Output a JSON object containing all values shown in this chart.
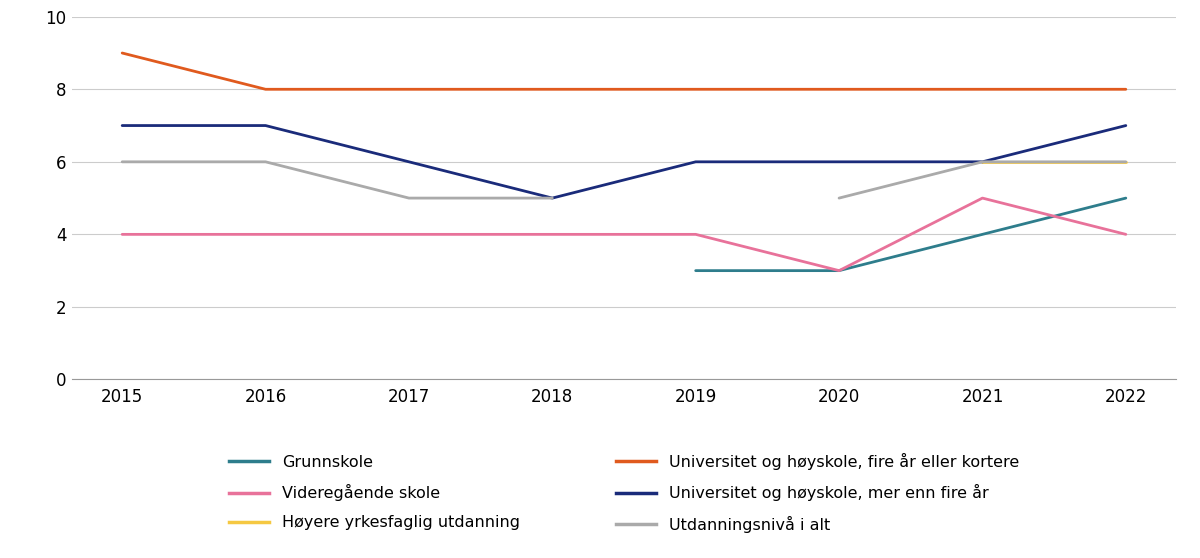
{
  "years": [
    2015,
    2016,
    2017,
    2018,
    2019,
    2020,
    2021,
    2022
  ],
  "series": {
    "Grunnskole": {
      "values": [
        null,
        null,
        null,
        null,
        3.0,
        3.0,
        4.0,
        5.0
      ],
      "color": "#2e7d8c",
      "linestyle": "-"
    },
    "Videregående skole": {
      "values": [
        4.0,
        4.0,
        4.0,
        4.0,
        4.0,
        3.0,
        5.0,
        4.0
      ],
      "color": "#e8729a",
      "linestyle": "-"
    },
    "Høyere yrkesfaglig utdanning": {
      "values": [
        null,
        null,
        null,
        null,
        null,
        null,
        6.0,
        6.0
      ],
      "color": "#f5c842",
      "linestyle": "-"
    },
    "Universitet og høyskole, fire år eller kortere": {
      "values": [
        9.0,
        8.0,
        8.0,
        8.0,
        8.0,
        8.0,
        8.0,
        8.0
      ],
      "color": "#e05a1e",
      "linestyle": "-"
    },
    "Universitet og høyskole, mer enn fire år": {
      "values": [
        7.0,
        7.0,
        6.0,
        5.0,
        6.0,
        6.0,
        6.0,
        7.0
      ],
      "color": "#1a2b7a",
      "linestyle": "-"
    },
    "Utdanningsnivå i alt": {
      "values": [
        6.0,
        6.0,
        5.0,
        5.0,
        null,
        5.0,
        6.0,
        6.0
      ],
      "color": "#aaaaaa",
      "linestyle": "-"
    }
  },
  "ylim": [
    0,
    10
  ],
  "yticks": [
    0,
    2,
    4,
    6,
    8,
    10
  ],
  "xlabel": "",
  "ylabel": "",
  "background_color": "#ffffff",
  "grid_color": "#cccccc",
  "legend_order": [
    "Grunnskole",
    "Videregående skole",
    "Høyere yrkesfaglig utdanning",
    "Universitet og høyskole, fire år eller kortere",
    "Universitet og høyskole, mer enn fire år",
    "Utdanningsnivå i alt"
  ],
  "xlim_left": 2014.65,
  "xlim_right": 2022.35
}
